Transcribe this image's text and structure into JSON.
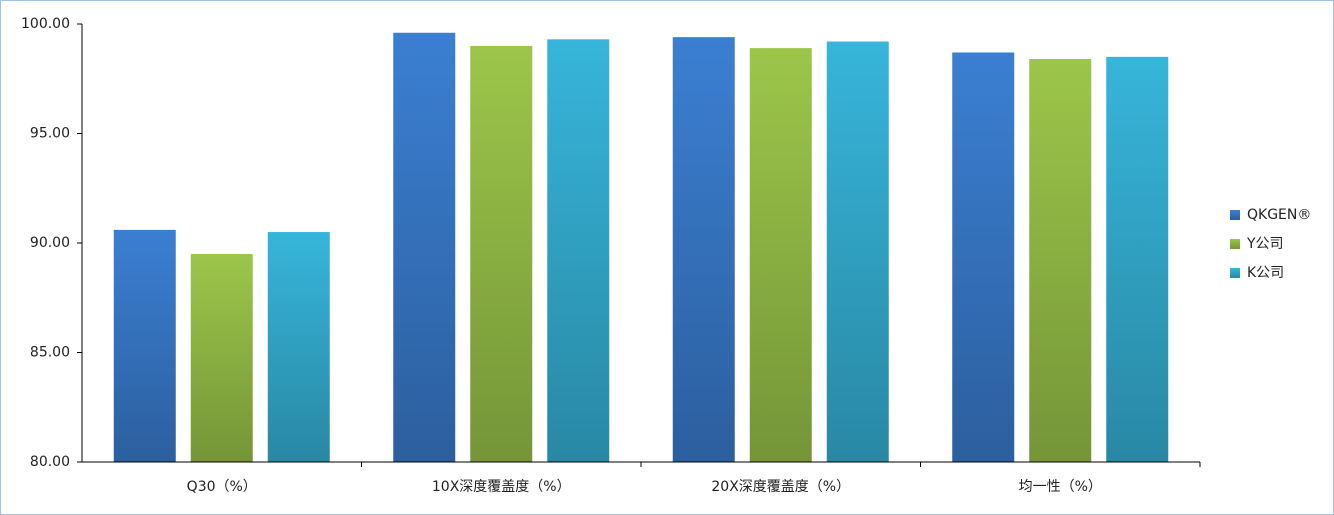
{
  "chart_data": {
    "type": "bar",
    "categories": [
      "Q30（%）",
      "10X深度覆盖度（%）",
      "20X深度覆盖度（%）",
      "均一性（%）"
    ],
    "series": [
      {
        "name": "QKGEN®",
        "color": "#3b7fd2",
        "values": [
          90.6,
          99.6,
          99.4,
          98.7
        ]
      },
      {
        "name": "Y公司",
        "color": "#9cc64a",
        "values": [
          89.5,
          99.0,
          98.9,
          98.4
        ]
      },
      {
        "name": "K公司",
        "color": "#37b5da",
        "values": [
          90.5,
          99.3,
          99.2,
          98.5
        ]
      }
    ],
    "ylim": [
      80,
      100
    ],
    "yticks": [
      {
        "value": 80,
        "label": "80.00"
      },
      {
        "value": 85,
        "label": "85.00"
      },
      {
        "value": 90,
        "label": "90.00"
      },
      {
        "value": 95,
        "label": "95.00"
      },
      {
        "value": 100,
        "label": "100.00"
      }
    ],
    "legend": "right"
  }
}
